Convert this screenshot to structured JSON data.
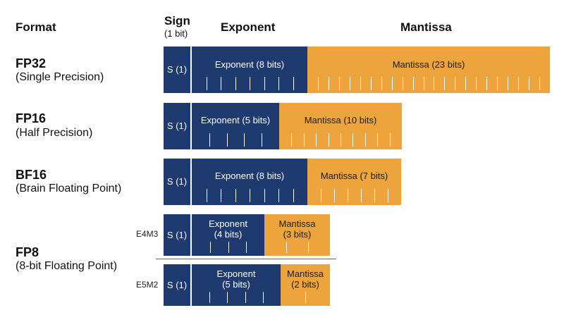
{
  "colors": {
    "sign": "#1f3a6e",
    "exponent": "#1f3a6e",
    "mantissa": "#eda43c",
    "text_on_bar": "#ffffff",
    "text_on_mantissa": "#1a1a1a"
  },
  "headers": {
    "format": "Format",
    "sign": "Sign",
    "sign_sub": "(1 bit)",
    "exponent": "Exponent",
    "mantissa": "Mantissa"
  },
  "formats": [
    {
      "name": "FP32",
      "desc": "(Single Precision)",
      "bars": [
        {
          "sign": {
            "label": "S (1)",
            "bits": 1
          },
          "exponent": {
            "line1": "Exponent (8 bits)",
            "line2": "",
            "bits": 8
          },
          "mantissa": {
            "line1": "Mantissa (23 bits)",
            "line2": "",
            "bits": 23
          }
        }
      ]
    },
    {
      "name": "FP16",
      "desc": "(Half Precision)",
      "bars": [
        {
          "sign": {
            "label": "S (1)",
            "bits": 1
          },
          "exponent": {
            "line1": "Exponent (5 bits)",
            "line2": "",
            "bits": 5
          },
          "mantissa": {
            "line1": "Mantissa (10 bits)",
            "line2": "",
            "bits": 10
          }
        }
      ]
    },
    {
      "name": "BF16",
      "desc": "(Brain Floating Point)",
      "bars": [
        {
          "sign": {
            "label": "S (1)",
            "bits": 1
          },
          "exponent": {
            "line1": "Exponent (8 bits)",
            "line2": "",
            "bits": 8
          },
          "mantissa": {
            "line1": "Mantissa (7 bits)",
            "line2": "",
            "bits": 7
          }
        }
      ]
    },
    {
      "name": "FP8",
      "desc": "(8-bit Floating Point)",
      "bars": [
        {
          "variant": "E4M3",
          "sign": {
            "label": "S (1)",
            "bits": 1
          },
          "exponent": {
            "line1": "Exponent",
            "line2": "(4 bits)",
            "bits": 4
          },
          "mantissa": {
            "line1": "Mantissa",
            "line2": "(3 bits)",
            "bits": 3
          }
        },
        {
          "variant": "E5M2",
          "sign": {
            "label": "S (1)",
            "bits": 1
          },
          "exponent": {
            "line1": "Exponent",
            "line2": "(5 bits)",
            "bits": 5
          },
          "mantissa": {
            "line1": "Mantissa",
            "line2": "(2 bits)",
            "bits": 2
          }
        }
      ]
    }
  ]
}
